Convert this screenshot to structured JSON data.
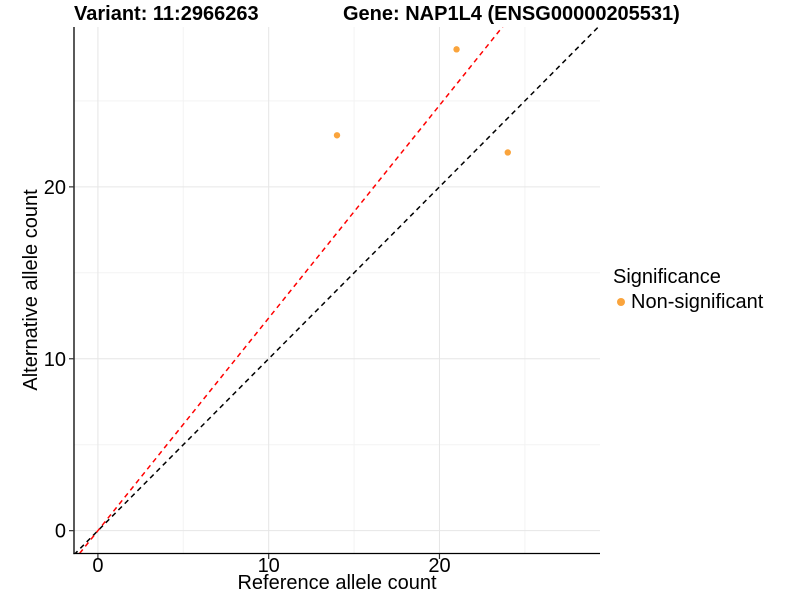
{
  "chart_data": {
    "type": "scatter",
    "titles": {
      "left": "Variant: 11:2966263",
      "right": "Gene: NAP1L4 (ENSG00000205531)"
    },
    "xlabel": "Reference allele count",
    "ylabel": "Alternative allele count",
    "xlim": [
      -1.4,
      29.4
    ],
    "ylim": [
      -1.3,
      29.3
    ],
    "x_major_ticks": [
      0,
      10,
      20
    ],
    "y_major_ticks": [
      0,
      10,
      20
    ],
    "x_minor_gridlines": [
      5,
      15,
      25
    ],
    "y_minor_gridlines": [
      5,
      15,
      25
    ],
    "grid": {
      "major_color": "#E6E6E6",
      "minor_color": "#F3F3F3"
    },
    "series": [
      {
        "name": "Non-significant",
        "color": "#FAA43C",
        "points": [
          {
            "x": 14,
            "y": 23
          },
          {
            "x": 21,
            "y": 28
          },
          {
            "x": 24,
            "y": 22
          }
        ]
      }
    ],
    "reference_lines": [
      {
        "name": "identity-line",
        "slope": 1.0,
        "intercept": 0,
        "color": "#000000",
        "style": "dashed"
      },
      {
        "name": "allelic-ratio-line",
        "slope": 1.237,
        "intercept": 0,
        "color": "#FF0000",
        "style": "dashed"
      }
    ],
    "legend": {
      "title": "Significance",
      "position": "right-middle",
      "items": [
        {
          "label": "Non-significant",
          "color": "#FAA43C",
          "marker": "circle"
        }
      ]
    }
  }
}
